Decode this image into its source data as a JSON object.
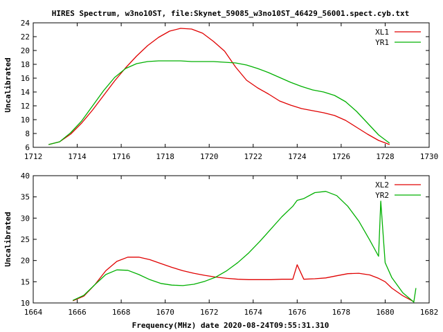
{
  "figure": {
    "title": "HIRES Spectrum, w3no10ST, file:Skynet_59085_w3no10ST_46429_56001.spect.cyb.txt",
    "xlabel": "Frequency(MHz) date 2020-08-24T09:55:31.310"
  },
  "colors": {
    "red": "#e00000",
    "green": "#00b000",
    "axis": "#000000",
    "background": "#ffffff"
  },
  "chart_data": [
    {
      "type": "line",
      "ylabel": "Uncalibrated",
      "xlim": [
        1712,
        1730
      ],
      "ylim": [
        6,
        24
      ],
      "xticks": [
        1712,
        1714,
        1716,
        1718,
        1720,
        1722,
        1724,
        1726,
        1728,
        1730
      ],
      "yticks": [
        6,
        8,
        10,
        12,
        14,
        16,
        18,
        20,
        22,
        24
      ],
      "grid": false,
      "legend": "top-right",
      "series": [
        {
          "name": "XL1",
          "color": "#e00000",
          "x": [
            1712.7,
            1713.2,
            1713.7,
            1714.2,
            1714.7,
            1715.2,
            1715.7,
            1716.2,
            1716.7,
            1717.2,
            1717.7,
            1718.2,
            1718.7,
            1719.2,
            1719.7,
            1720.2,
            1720.7,
            1721.2,
            1721.7,
            1722.2,
            1722.7,
            1723.2,
            1723.7,
            1724.2,
            1724.7,
            1725.2,
            1725.7,
            1726.2,
            1726.7,
            1727.2,
            1727.7,
            1728.2
          ],
          "y": [
            6.4,
            6.8,
            7.9,
            9.5,
            11.4,
            13.5,
            15.6,
            17.5,
            19.2,
            20.7,
            21.9,
            22.8,
            23.2,
            23.1,
            22.5,
            21.3,
            19.9,
            17.6,
            15.7,
            14.6,
            13.7,
            12.7,
            12.1,
            11.6,
            11.3,
            11.0,
            10.6,
            9.9,
            8.9,
            7.9,
            7.0,
            6.4
          ]
        },
        {
          "name": "YR1",
          "color": "#00b000",
          "x": [
            1712.7,
            1713.2,
            1713.7,
            1714.2,
            1714.7,
            1715.2,
            1715.7,
            1716.2,
            1716.7,
            1717.2,
            1717.7,
            1718.2,
            1718.7,
            1719.2,
            1719.7,
            1720.2,
            1720.7,
            1721.2,
            1721.7,
            1722.2,
            1722.7,
            1723.2,
            1723.7,
            1724.2,
            1724.7,
            1725.2,
            1725.7,
            1726.2,
            1726.7,
            1727.2,
            1727.7,
            1728.2
          ],
          "y": [
            6.4,
            6.8,
            8.1,
            9.8,
            12.0,
            14.2,
            16.1,
            17.4,
            18.1,
            18.4,
            18.5,
            18.5,
            18.5,
            18.4,
            18.4,
            18.4,
            18.3,
            18.2,
            17.9,
            17.4,
            16.8,
            16.1,
            15.4,
            14.8,
            14.3,
            14.0,
            13.5,
            12.6,
            11.2,
            9.5,
            7.8,
            6.6
          ]
        }
      ]
    },
    {
      "type": "line",
      "ylabel": "Uncalibrated",
      "xlim": [
        1664,
        1682
      ],
      "ylim": [
        10,
        40
      ],
      "xticks": [
        1664,
        1666,
        1668,
        1670,
        1672,
        1674,
        1676,
        1678,
        1680,
        1682
      ],
      "yticks": [
        10,
        15,
        20,
        25,
        30,
        35,
        40
      ],
      "grid": false,
      "legend": "top-right",
      "series": [
        {
          "name": "XL2",
          "color": "#e00000",
          "x": [
            1665.8,
            1666.3,
            1666.8,
            1667.3,
            1667.8,
            1668.3,
            1668.8,
            1669.3,
            1669.8,
            1670.3,
            1670.8,
            1671.3,
            1671.8,
            1672.3,
            1672.8,
            1673.3,
            1673.8,
            1674.3,
            1674.8,
            1675.3,
            1675.8,
            1676.0,
            1676.3,
            1676.8,
            1677.3,
            1677.8,
            1678.3,
            1678.8,
            1679.3,
            1679.7,
            1680.0,
            1680.3,
            1680.8,
            1681.3
          ],
          "y": [
            10.5,
            11.6,
            14.3,
            17.6,
            19.8,
            20.8,
            20.8,
            20.2,
            19.3,
            18.4,
            17.6,
            17.0,
            16.5,
            16.1,
            15.8,
            15.6,
            15.5,
            15.5,
            15.5,
            15.6,
            15.6,
            19.0,
            15.6,
            15.7,
            15.9,
            16.4,
            16.9,
            17.0,
            16.6,
            15.8,
            15.0,
            13.5,
            11.7,
            10.3
          ]
        },
        {
          "name": "YR2",
          "color": "#00b000",
          "x": [
            1665.8,
            1666.3,
            1666.8,
            1667.3,
            1667.8,
            1668.3,
            1668.8,
            1669.3,
            1669.8,
            1670.3,
            1670.8,
            1671.3,
            1671.8,
            1672.3,
            1672.8,
            1673.3,
            1673.8,
            1674.3,
            1674.8,
            1675.3,
            1675.8,
            1676.0,
            1676.3,
            1676.8,
            1677.3,
            1677.8,
            1678.3,
            1678.8,
            1679.3,
            1679.7,
            1679.8,
            1680.0,
            1680.3,
            1680.8,
            1681.3,
            1681.4
          ],
          "y": [
            10.6,
            11.8,
            14.3,
            16.7,
            17.8,
            17.7,
            16.7,
            15.5,
            14.6,
            14.2,
            14.1,
            14.4,
            15.1,
            16.1,
            17.6,
            19.5,
            21.8,
            24.5,
            27.4,
            30.3,
            32.8,
            34.2,
            34.6,
            36.0,
            36.3,
            35.3,
            32.8,
            29.3,
            24.8,
            21.0,
            34.0,
            19.5,
            16.0,
            12.4,
            10.2,
            13.5
          ]
        }
      ]
    }
  ]
}
